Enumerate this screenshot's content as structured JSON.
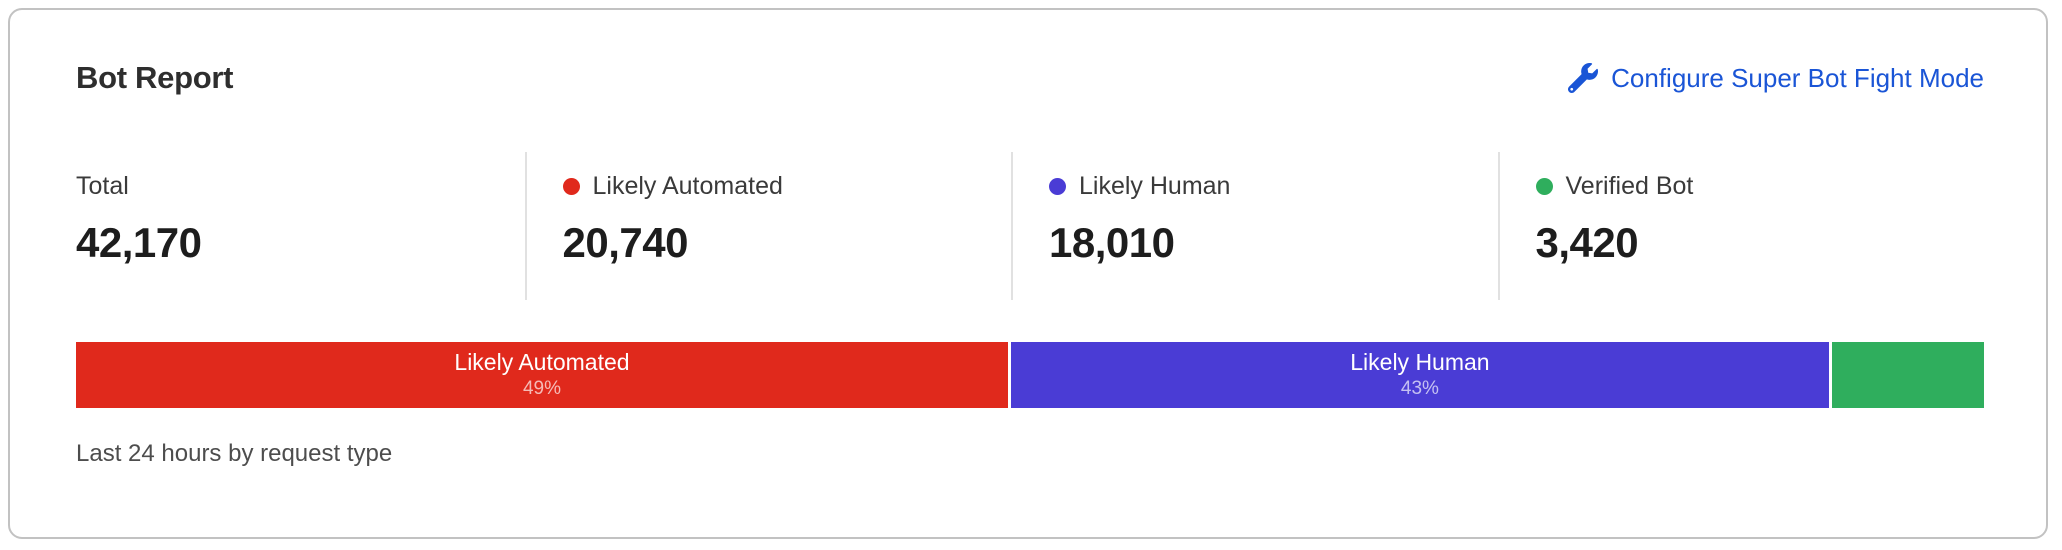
{
  "card": {
    "title": "Bot Report",
    "configure_link": "Configure Super Bot Fight Mode",
    "caption": "Last 24 hours by request type"
  },
  "stats": [
    {
      "label": "Total",
      "value": "42,170"
    },
    {
      "label": "Likely Automated",
      "value": "20,740",
      "dot_color": "#e0291c"
    },
    {
      "label": "Likely Human",
      "value": "18,010",
      "dot_color": "#4a3cd5"
    },
    {
      "label": "Verified Bot",
      "value": "3,420",
      "dot_color": "#2fae5d"
    }
  ],
  "colors": {
    "link_blue": "#1a55d6",
    "likely_automated_red": "#e0291c",
    "likely_human_indigo": "#4a3cd5",
    "verified_bot_green": "#2fae5d",
    "card_border": "#c2c2c2",
    "divider": "#e1e1e1"
  },
  "chart_data": {
    "type": "bar",
    "variant": "horizontal-stacked",
    "title": "Bot Report",
    "caption": "Last 24 hours by request type",
    "total": 42170,
    "segments": [
      {
        "label": "Likely Automated",
        "value": 20740,
        "pct": 49,
        "pct_label": "49%",
        "color": "#e0291c"
      },
      {
        "label": "Likely Human",
        "value": 18010,
        "pct": 43,
        "pct_label": "43%",
        "color": "#4a3cd5"
      },
      {
        "label": "Verified Bot",
        "value": 3420,
        "pct": 8,
        "pct_label": "",
        "color": "#2fae5d"
      }
    ]
  }
}
